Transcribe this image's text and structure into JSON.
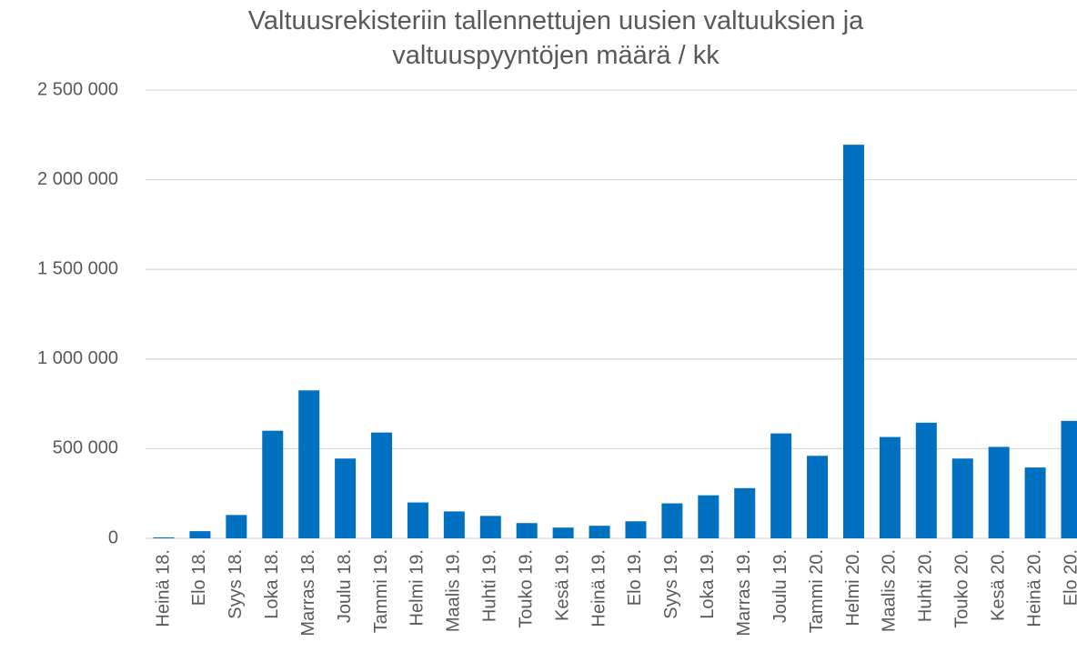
{
  "chart_data": {
    "type": "bar",
    "title": "Valtuusrekisteriin tallennettujen uusien valtuuksien ja valtuuspyyntöjen määrä / kk",
    "categories": [
      "Heinä 18.",
      "Elo 18.",
      "Syys 18.",
      "Loka 18.",
      "Marras 18.",
      "Joulu 18.",
      "Tammi 19.",
      "Helmi 19.",
      "Maalis 19.",
      "Huhti 19.",
      "Touko 19.",
      "Kesä 19.",
      "Heinä 19.",
      "Elo 19.",
      "Syys 19.",
      "Loka 19.",
      "Marras 19.",
      "Joulu 19.",
      "Tammi 20.",
      "Helmi 20.",
      "Maalis 20.",
      "Huhti 20.",
      "Touko 20.",
      "Kesä 20.",
      "Heinä 20.",
      "Elo 20."
    ],
    "values": [
      5000,
      40000,
      130000,
      600000,
      825000,
      445000,
      590000,
      200000,
      150000,
      125000,
      85000,
      60000,
      70000,
      95000,
      195000,
      240000,
      280000,
      585000,
      460000,
      2195000,
      565000,
      645000,
      445000,
      510000,
      395000,
      655000
    ],
    "color": "#0070c0",
    "ylim": [
      0,
      2500000
    ],
    "yticks": [
      0,
      {
        "value": 500000,
        "label": "500 000"
      },
      {
        "value": 1000000,
        "label": "1 000 000"
      },
      {
        "value": 1500000,
        "label": "1 500 000"
      },
      {
        "value": 2000000,
        "label": "2 000 000"
      },
      {
        "value": 2500000,
        "label": "2 500 000"
      }
    ],
    "grid": true
  }
}
